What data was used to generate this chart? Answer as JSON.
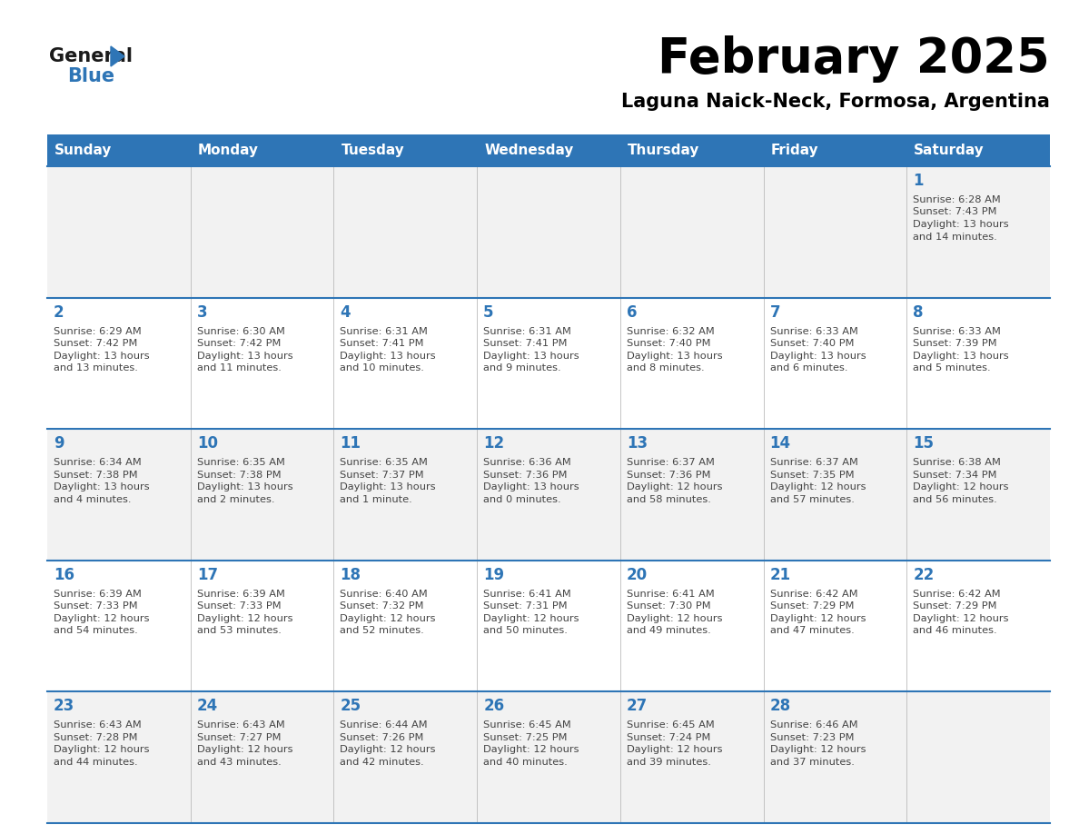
{
  "title": "February 2025",
  "subtitle": "Laguna Naick-Neck, Formosa, Argentina",
  "days_of_week": [
    "Sunday",
    "Monday",
    "Tuesday",
    "Wednesday",
    "Thursday",
    "Friday",
    "Saturday"
  ],
  "header_bg": "#2e75b6",
  "header_text_color": "#ffffff",
  "cell_bg_odd": "#f2f2f2",
  "cell_bg_even": "#ffffff",
  "title_color": "#000000",
  "subtitle_color": "#000000",
  "day_number_color": "#2e75b6",
  "cell_text_color": "#444444",
  "border_color": "#2e75b6",
  "logo_color_general": "#1a1a1a",
  "logo_color_blue": "#2e75b6",
  "calendar_data": [
    [
      null,
      null,
      null,
      null,
      null,
      null,
      {
        "day": 1,
        "sunrise": "6:28 AM",
        "sunset": "7:43 PM",
        "daylight_h": "13 hours",
        "daylight_m": "and 14 minutes."
      }
    ],
    [
      {
        "day": 2,
        "sunrise": "6:29 AM",
        "sunset": "7:42 PM",
        "daylight_h": "13 hours",
        "daylight_m": "and 13 minutes."
      },
      {
        "day": 3,
        "sunrise": "6:30 AM",
        "sunset": "7:42 PM",
        "daylight_h": "13 hours",
        "daylight_m": "and 11 minutes."
      },
      {
        "day": 4,
        "sunrise": "6:31 AM",
        "sunset": "7:41 PM",
        "daylight_h": "13 hours",
        "daylight_m": "and 10 minutes."
      },
      {
        "day": 5,
        "sunrise": "6:31 AM",
        "sunset": "7:41 PM",
        "daylight_h": "13 hours",
        "daylight_m": "and 9 minutes."
      },
      {
        "day": 6,
        "sunrise": "6:32 AM",
        "sunset": "7:40 PM",
        "daylight_h": "13 hours",
        "daylight_m": "and 8 minutes."
      },
      {
        "day": 7,
        "sunrise": "6:33 AM",
        "sunset": "7:40 PM",
        "daylight_h": "13 hours",
        "daylight_m": "and 6 minutes."
      },
      {
        "day": 8,
        "sunrise": "6:33 AM",
        "sunset": "7:39 PM",
        "daylight_h": "13 hours",
        "daylight_m": "and 5 minutes."
      }
    ],
    [
      {
        "day": 9,
        "sunrise": "6:34 AM",
        "sunset": "7:38 PM",
        "daylight_h": "13 hours",
        "daylight_m": "and 4 minutes."
      },
      {
        "day": 10,
        "sunrise": "6:35 AM",
        "sunset": "7:38 PM",
        "daylight_h": "13 hours",
        "daylight_m": "and 2 minutes."
      },
      {
        "day": 11,
        "sunrise": "6:35 AM",
        "sunset": "7:37 PM",
        "daylight_h": "13 hours",
        "daylight_m": "and 1 minute."
      },
      {
        "day": 12,
        "sunrise": "6:36 AM",
        "sunset": "7:36 PM",
        "daylight_h": "13 hours",
        "daylight_m": "and 0 minutes."
      },
      {
        "day": 13,
        "sunrise": "6:37 AM",
        "sunset": "7:36 PM",
        "daylight_h": "12 hours",
        "daylight_m": "and 58 minutes."
      },
      {
        "day": 14,
        "sunrise": "6:37 AM",
        "sunset": "7:35 PM",
        "daylight_h": "12 hours",
        "daylight_m": "and 57 minutes."
      },
      {
        "day": 15,
        "sunrise": "6:38 AM",
        "sunset": "7:34 PM",
        "daylight_h": "12 hours",
        "daylight_m": "and 56 minutes."
      }
    ],
    [
      {
        "day": 16,
        "sunrise": "6:39 AM",
        "sunset": "7:33 PM",
        "daylight_h": "12 hours",
        "daylight_m": "and 54 minutes."
      },
      {
        "day": 17,
        "sunrise": "6:39 AM",
        "sunset": "7:33 PM",
        "daylight_h": "12 hours",
        "daylight_m": "and 53 minutes."
      },
      {
        "day": 18,
        "sunrise": "6:40 AM",
        "sunset": "7:32 PM",
        "daylight_h": "12 hours",
        "daylight_m": "and 52 minutes."
      },
      {
        "day": 19,
        "sunrise": "6:41 AM",
        "sunset": "7:31 PM",
        "daylight_h": "12 hours",
        "daylight_m": "and 50 minutes."
      },
      {
        "day": 20,
        "sunrise": "6:41 AM",
        "sunset": "7:30 PM",
        "daylight_h": "12 hours",
        "daylight_m": "and 49 minutes."
      },
      {
        "day": 21,
        "sunrise": "6:42 AM",
        "sunset": "7:29 PM",
        "daylight_h": "12 hours",
        "daylight_m": "and 47 minutes."
      },
      {
        "day": 22,
        "sunrise": "6:42 AM",
        "sunset": "7:29 PM",
        "daylight_h": "12 hours",
        "daylight_m": "and 46 minutes."
      }
    ],
    [
      {
        "day": 23,
        "sunrise": "6:43 AM",
        "sunset": "7:28 PM",
        "daylight_h": "12 hours",
        "daylight_m": "and 44 minutes."
      },
      {
        "day": 24,
        "sunrise": "6:43 AM",
        "sunset": "7:27 PM",
        "daylight_h": "12 hours",
        "daylight_m": "and 43 minutes."
      },
      {
        "day": 25,
        "sunrise": "6:44 AM",
        "sunset": "7:26 PM",
        "daylight_h": "12 hours",
        "daylight_m": "and 42 minutes."
      },
      {
        "day": 26,
        "sunrise": "6:45 AM",
        "sunset": "7:25 PM",
        "daylight_h": "12 hours",
        "daylight_m": "and 40 minutes."
      },
      {
        "day": 27,
        "sunrise": "6:45 AM",
        "sunset": "7:24 PM",
        "daylight_h": "12 hours",
        "daylight_m": "and 39 minutes."
      },
      {
        "day": 28,
        "sunrise": "6:46 AM",
        "sunset": "7:23 PM",
        "daylight_h": "12 hours",
        "daylight_m": "and 37 minutes."
      },
      null
    ]
  ]
}
